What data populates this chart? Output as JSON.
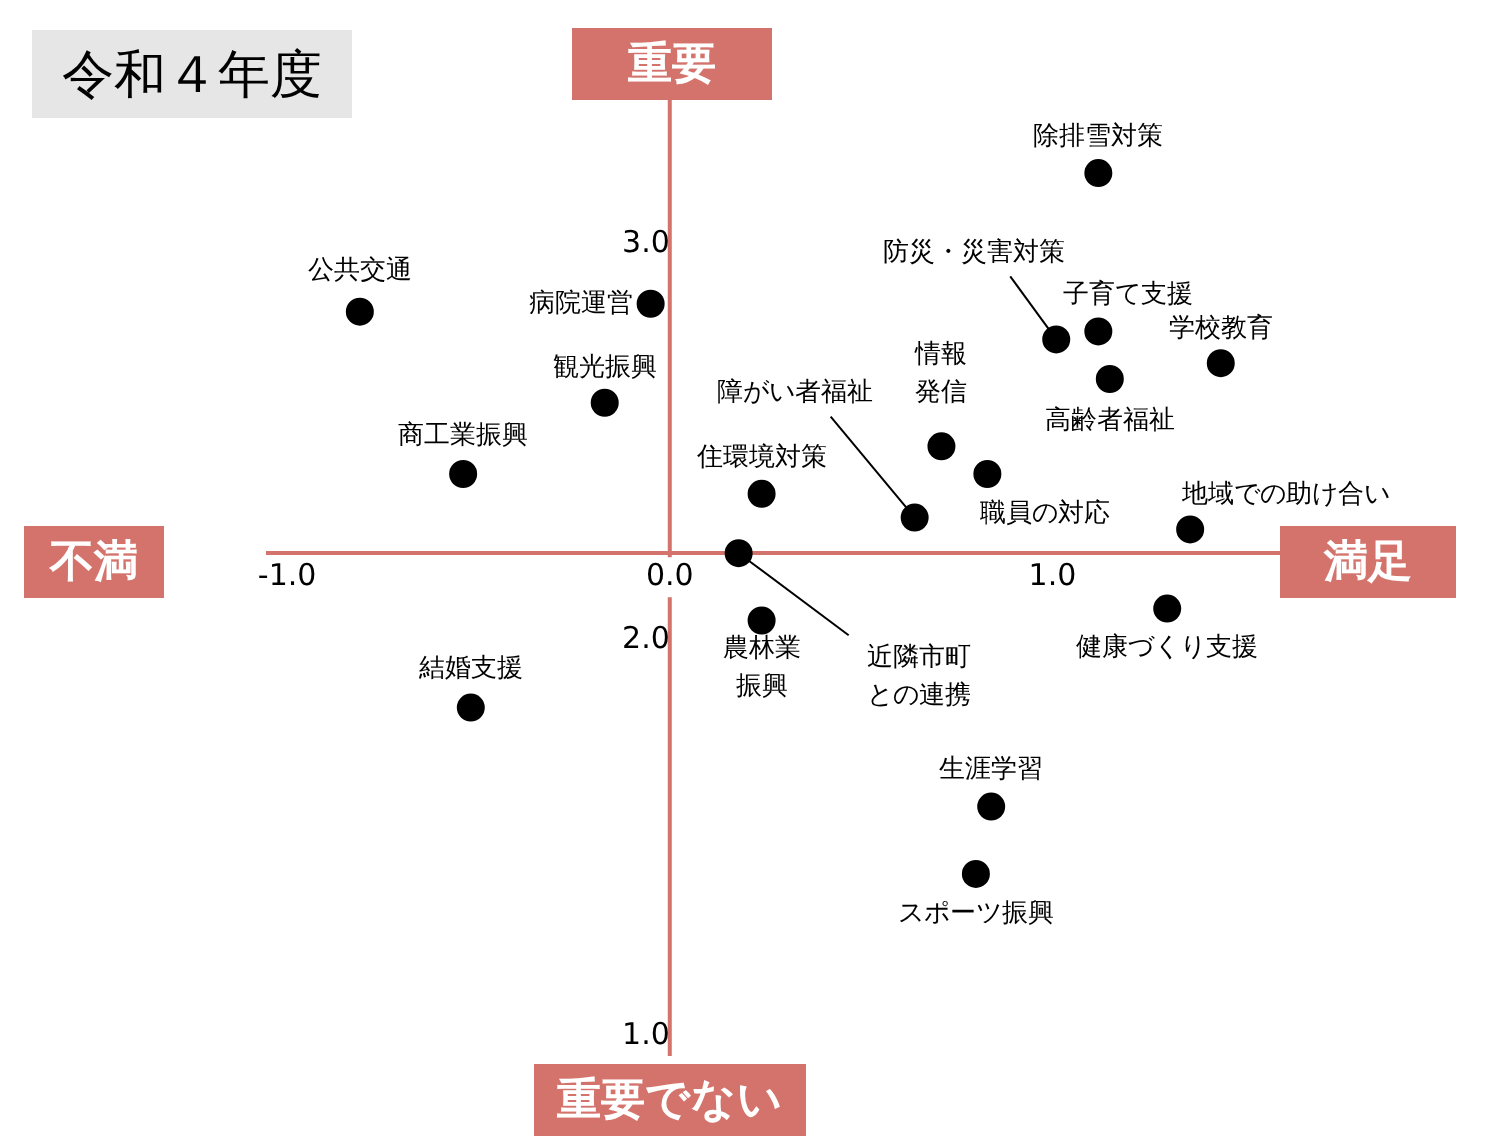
{
  "chart_data": {
    "type": "scatter",
    "title": "令和４年度",
    "annotations": [
      "重要",
      "重要でない",
      "不満",
      "満足"
    ],
    "xlim": [
      -1.05,
      1.6
    ],
    "ylim": [
      0.95,
      3.4
    ],
    "xticks": [
      {
        "value": -1,
        "label": "-1.0"
      },
      {
        "value": 0,
        "label": "0.0"
      },
      {
        "value": 1,
        "label": "1.0"
      }
    ],
    "yticks": [
      {
        "value": 3,
        "label": "3.0"
      },
      {
        "value": 2,
        "label": "2.0"
      },
      {
        "value": 1,
        "label": "1.0"
      }
    ],
    "grid": false,
    "legend": false,
    "marker": "circle",
    "series": [
      {
        "name": "公共交通",
        "color": "#000000",
        "x": [
          -0.81
        ],
        "values": [
          2.83
        ]
      },
      {
        "name": "病院運営",
        "color": "#000000",
        "x": [
          -0.05
        ],
        "values": [
          2.85
        ]
      },
      {
        "name": "観光振興",
        "color": "#000000",
        "x": [
          -0.17
        ],
        "values": [
          2.6
        ]
      },
      {
        "name": "商工業振興",
        "color": "#000000",
        "x": [
          -0.54
        ],
        "values": [
          2.42
        ]
      },
      {
        "name": "結婚支援",
        "color": "#000000",
        "x": [
          -0.52
        ],
        "values": [
          1.83
        ]
      },
      {
        "name": "住環境対策",
        "color": "#000000",
        "x": [
          0.24
        ],
        "values": [
          2.37
        ]
      },
      {
        "name": "障がい者福祉",
        "color": "#000000",
        "x": [
          0.64
        ],
        "values": [
          2.31
        ]
      },
      {
        "name": "近隣市町との連携",
        "color": "#000000",
        "x": [
          0.18
        ],
        "values": [
          2.22
        ]
      },
      {
        "name": "農林業振興",
        "color": "#000000",
        "x": [
          0.24
        ],
        "values": [
          2.05
        ]
      },
      {
        "name": "情報発信",
        "color": "#000000",
        "x": [
          0.71
        ],
        "values": [
          2.49
        ]
      },
      {
        "name": "職員の対応",
        "color": "#000000",
        "x": [
          0.83
        ],
        "values": [
          2.42
        ]
      },
      {
        "name": "除排雪対策",
        "color": "#000000",
        "x": [
          1.12
        ],
        "values": [
          3.18
        ]
      },
      {
        "name": "防災・災害対策",
        "color": "#000000",
        "x": [
          1.01
        ],
        "values": [
          2.76
        ]
      },
      {
        "name": "子育て支援",
        "color": "#000000",
        "x": [
          1.12
        ],
        "values": [
          2.78
        ]
      },
      {
        "name": "学校教育",
        "color": "#000000",
        "x": [
          1.44
        ],
        "values": [
          2.7
        ]
      },
      {
        "name": "高齢者福祉",
        "color": "#000000",
        "x": [
          1.15
        ],
        "values": [
          2.66
        ]
      },
      {
        "name": "地域での助け合い",
        "color": "#000000",
        "x": [
          1.36
        ],
        "values": [
          2.28
        ]
      },
      {
        "name": "健康づくり支援",
        "color": "#000000",
        "x": [
          1.3
        ],
        "values": [
          2.08
        ]
      },
      {
        "name": "生涯学習",
        "color": "#000000",
        "x": [
          0.84
        ],
        "values": [
          1.58
        ]
      },
      {
        "name": "スポーツ振興",
        "color": "#000000",
        "x": [
          0.8
        ],
        "values": [
          1.41
        ]
      }
    ]
  }
}
